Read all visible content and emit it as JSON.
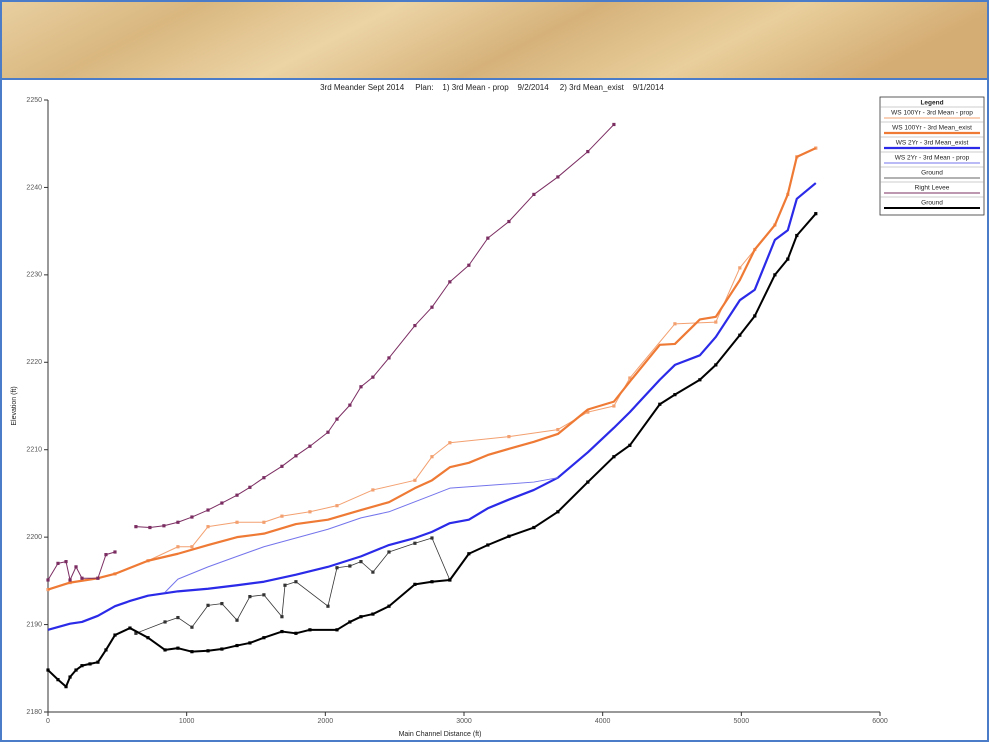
{
  "chart_data": {
    "type": "line",
    "title": "3rd Meander Sept 2014     Plan:    1) 3rd Mean - prop    9/2/2014     2) 3rd Mean_exist    9/1/2014",
    "x_label": "Main Channel Distance (ft)",
    "y_label": "Elevation (ft)",
    "legend_title": "Legend",
    "legend_position": "top-right",
    "xlim": [
      0,
      6000
    ],
    "xticks": [
      0,
      1000,
      2000,
      3000,
      4000,
      5000,
      6000
    ],
    "ylim": [
      2180,
      2250
    ],
    "yticks": [
      2180,
      2190,
      2200,
      2210,
      2220,
      2230,
      2240,
      2250
    ],
    "series": [
      {
        "name": "WS 100Yr - 3rd Mean - prop",
        "color": "#f3a070",
        "width": 1,
        "markers": true,
        "x": [
          0,
          159,
          360,
          483,
          721,
          937,
          1038,
          1154,
          1363,
          1557,
          1687,
          1889,
          2084,
          2343,
          2646,
          2769,
          2898,
          3324,
          3677,
          3893,
          4081,
          4196,
          4521,
          4816,
          4989,
          5097,
          5242,
          5335,
          5400,
          5537
        ],
        "values": [
          2194.0,
          2194.8,
          2195.3,
          2195.8,
          2197.3,
          2198.9,
          2198.9,
          2201.2,
          2201.7,
          2201.7,
          2202.4,
          2202.9,
          2203.6,
          2205.4,
          2206.5,
          2209.2,
          2210.8,
          2211.5,
          2212.3,
          2214.3,
          2215.0,
          2218.2,
          2224.4,
          2224.6,
          2230.8,
          2232.9,
          2235.7,
          2239.2,
          2243.5,
          2244.5
        ]
      },
      {
        "name": "WS 100Yr - 3rd Mean_exist",
        "color": "#ee7a35",
        "width": 2.2,
        "markers": false,
        "x": [
          0,
          159,
          360,
          483,
          721,
          937,
          1154,
          1363,
          1557,
          1788,
          2019,
          2257,
          2459,
          2646,
          2769,
          2898,
          3035,
          3172,
          3324,
          3504,
          3677,
          3893,
          4081,
          4196,
          4412,
          4521,
          4701,
          4816,
          4989,
          5097,
          5242,
          5335,
          5400,
          5537
        ],
        "values": [
          2194.0,
          2194.8,
          2195.3,
          2195.8,
          2197.3,
          2198.1,
          2199.1,
          2200.0,
          2200.4,
          2201.5,
          2202.0,
          2203.1,
          2204.0,
          2205.6,
          2206.5,
          2208.0,
          2208.5,
          2209.4,
          2210.1,
          2210.9,
          2211.8,
          2214.6,
          2215.5,
          2217.8,
          2222.0,
          2222.1,
          2224.9,
          2225.2,
          2229.4,
          2232.9,
          2235.7,
          2239.2,
          2243.5,
          2244.5
        ]
      },
      {
        "name": "WS 2Yr - 3rd Mean_exist",
        "color": "#2a2ae8",
        "width": 2.2,
        "markers": false,
        "x": [
          0,
          159,
          245,
          360,
          483,
          591,
          721,
          937,
          1154,
          1363,
          1557,
          1788,
          2019,
          2257,
          2459,
          2646,
          2769,
          2898,
          3035,
          3172,
          3324,
          3504,
          3677,
          3893,
          4081,
          4196,
          4412,
          4521,
          4701,
          4816,
          4989,
          5097,
          5242,
          5335,
          5400,
          5537
        ],
        "values": [
          2189.4,
          2190.1,
          2190.3,
          2191.0,
          2192.1,
          2192.7,
          2193.3,
          2193.8,
          2194.1,
          2194.5,
          2194.9,
          2195.7,
          2196.6,
          2197.8,
          2199.1,
          2199.9,
          2200.6,
          2201.6,
          2202.0,
          2203.3,
          2204.3,
          2205.4,
          2206.8,
          2209.7,
          2212.5,
          2214.3,
          2218.0,
          2219.7,
          2220.8,
          2222.9,
          2227.1,
          2228.3,
          2234.0,
          2235.1,
          2238.7,
          2240.5
        ]
      },
      {
        "name": "WS 2Yr - 3rd Mean - prop",
        "color": "#7474ec",
        "width": 1,
        "markers": false,
        "x": [
          844,
          937,
          1154,
          1363,
          1557,
          1788,
          2019,
          2257,
          2459,
          2769,
          2898,
          3504,
          3677
        ],
        "values": [
          2193.7,
          2195.2,
          2196.6,
          2197.8,
          2198.9,
          2199.9,
          2200.9,
          2202.2,
          2202.9,
          2204.8,
          2205.6,
          2206.3,
          2206.8
        ]
      },
      {
        "name": "Ground",
        "color": "#333333",
        "width": 0.8,
        "markers": true,
        "x": [
          634,
          844,
          937,
          1038,
          1154,
          1254,
          1363,
          1456,
          1557,
          1687,
          1709,
          1788,
          2019,
          2084,
          2177,
          2257,
          2343,
          2459,
          2646,
          2769,
          2898
        ],
        "values": [
          2189.0,
          2190.3,
          2190.8,
          2189.7,
          2192.2,
          2192.4,
          2190.5,
          2193.2,
          2193.4,
          2190.9,
          2194.5,
          2194.9,
          2192.1,
          2196.5,
          2196.7,
          2197.2,
          2196.0,
          2198.3,
          2199.3,
          2199.9,
          2195.1
        ]
      },
      {
        "name": "Right Levee",
        "color": "#7b2d62",
        "width": 1,
        "markers": true,
        "x": [
          0,
          72,
          130,
          159,
          202,
          245,
          360,
          418,
          483,
          null,
          634,
          735,
          836,
          937,
          1038,
          1154,
          1254,
          1363,
          1456,
          1557,
          1687,
          1788,
          1889,
          2019,
          2084,
          2177,
          2257,
          2343,
          2459,
          2646,
          2769,
          2898,
          3035,
          3172,
          3324,
          3504,
          3677,
          3893,
          4081
        ],
        "values": [
          2195.1,
          2197.0,
          2197.2,
          2195.1,
          2196.6,
          2195.3,
          2195.3,
          2198.0,
          2198.3,
          null,
          2201.2,
          2201.1,
          2201.3,
          2201.7,
          2202.3,
          2203.1,
          2203.9,
          2204.8,
          2205.7,
          2206.8,
          2208.1,
          2209.3,
          2210.4,
          2212.0,
          2213.5,
          2215.1,
          2217.2,
          2218.3,
          2220.5,
          2224.2,
          2226.3,
          2229.2,
          2231.1,
          2234.2,
          2236.1,
          2239.2,
          2241.2,
          2244.1,
          2247.2
        ]
      },
      {
        "name": "Ground",
        "color": "#000000",
        "width": 2,
        "markers": true,
        "x": [
          0,
          72,
          130,
          159,
          202,
          245,
          303,
          360,
          418,
          483,
          591,
          721,
          844,
          937,
          1038,
          1154,
          1254,
          1363,
          1456,
          1557,
          1687,
          1788,
          1889,
          2084,
          2177,
          2257,
          2343,
          2459,
          2646,
          2769,
          2898,
          3035,
          3172,
          3324,
          3504,
          3677,
          3893,
          4081,
          4196,
          4412,
          4521,
          4701,
          4816,
          4989,
          5097,
          5242,
          5335,
          5400,
          5537
        ],
        "values": [
          2184.8,
          2183.7,
          2182.9,
          2184.0,
          2184.8,
          2185.3,
          2185.5,
          2185.7,
          2187.1,
          2188.8,
          2189.6,
          2188.5,
          2187.1,
          2187.3,
          2186.9,
          2187.0,
          2187.2,
          2187.6,
          2187.9,
          2188.5,
          2189.2,
          2189.0,
          2189.4,
          2189.4,
          2190.3,
          2190.9,
          2191.2,
          2192.1,
          2194.6,
          2194.9,
          2195.1,
          2198.1,
          2199.1,
          2200.1,
          2201.1,
          2202.9,
          2206.3,
          2209.2,
          2210.5,
          2215.2,
          2216.3,
          2218.0,
          2219.7,
          2223.1,
          2225.3,
          2230.0,
          2231.8,
          2234.5,
          2237.0
        ]
      }
    ]
  }
}
